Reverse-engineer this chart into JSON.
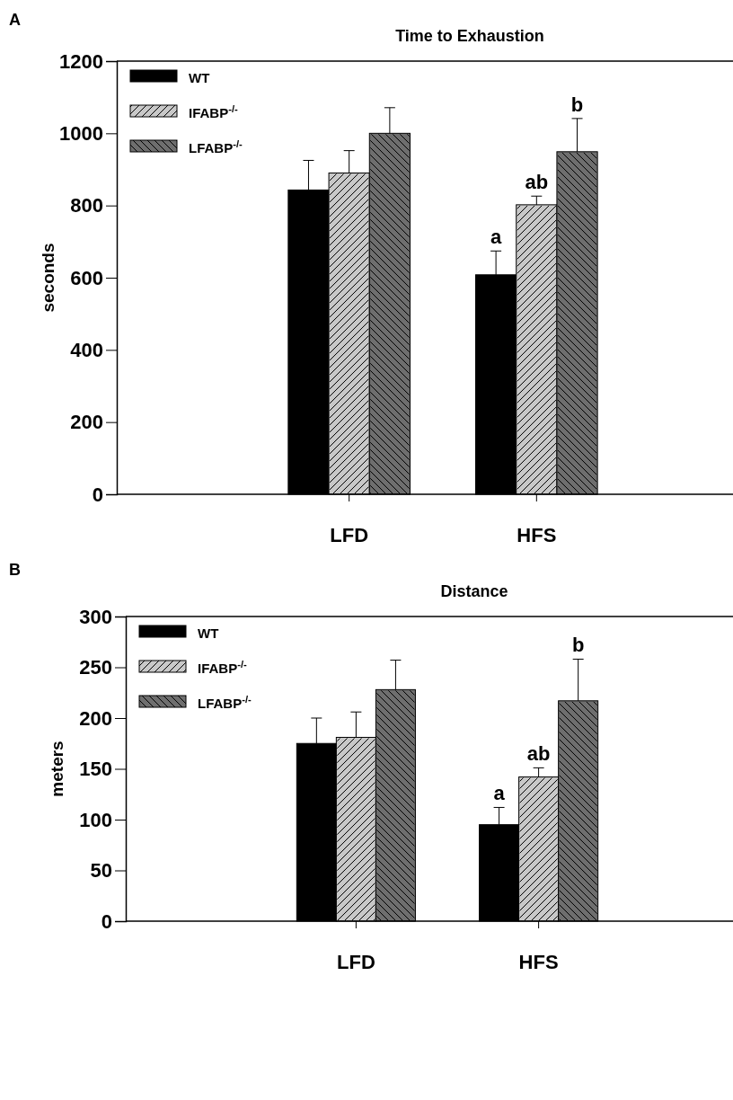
{
  "chart_data": [
    {
      "type": "bar",
      "title": "Time to Exhaustion",
      "ylabel": "seconds",
      "categories": [
        "LFD",
        "HFS"
      ],
      "ylim": [
        0,
        1200
      ],
      "yticks": [
        0,
        200,
        400,
        600,
        800,
        1000,
        1200
      ],
      "legend": "top left",
      "grid": false,
      "series": [
        {
          "name": "WT",
          "color": "#000000",
          "values": [
            843,
            608
          ],
          "errors": [
            [
              843,
              925
            ],
            [
              608,
              674
            ]
          ]
        },
        {
          "name": "IFABP$^{-/-}$",
          "color": "#c8c8c8",
          "values": [
            890,
            802
          ],
          "errors": [
            [
              890,
              952
            ],
            [
              802,
              826
            ]
          ]
        },
        {
          "name": "LFABP$^{-/-}$",
          "color": "#6e6e6e",
          "values": [
            1000,
            949
          ],
          "errors": [
            [
              1000,
              1071
            ],
            [
              949,
              1041
            ]
          ]
        }
      ],
      "annotations": [
        "A",
        "a",
        "ab",
        "b"
      ]
    },
    {
      "type": "bar",
      "title": "Distance",
      "ylabel": "meters",
      "categories": [
        "LFD",
        "HFS"
      ],
      "ylim": [
        0,
        300
      ],
      "yticks": [
        0,
        50,
        100,
        150,
        200,
        250,
        300
      ],
      "legend": "top left",
      "grid": false,
      "series": [
        {
          "name": "WT",
          "color": "#000000",
          "values": [
            175,
            95
          ],
          "errors": [
            [
              175,
              200
            ],
            [
              95,
              112
            ]
          ]
        },
        {
          "name": "IFABP$^{-/-}$",
          "color": "#c8c8c8",
          "values": [
            181,
            142
          ],
          "errors": [
            [
              181,
              206
            ],
            [
              142,
              151
            ]
          ]
        },
        {
          "name": "LFABP$^{-/-}$",
          "color": "#6e6e6e",
          "values": [
            228,
            217
          ],
          "errors": [
            [
              228,
              257
            ],
            [
              217,
              258
            ]
          ]
        }
      ],
      "annotations": [
        "B",
        "a",
        "ab",
        "b"
      ]
    }
  ]
}
